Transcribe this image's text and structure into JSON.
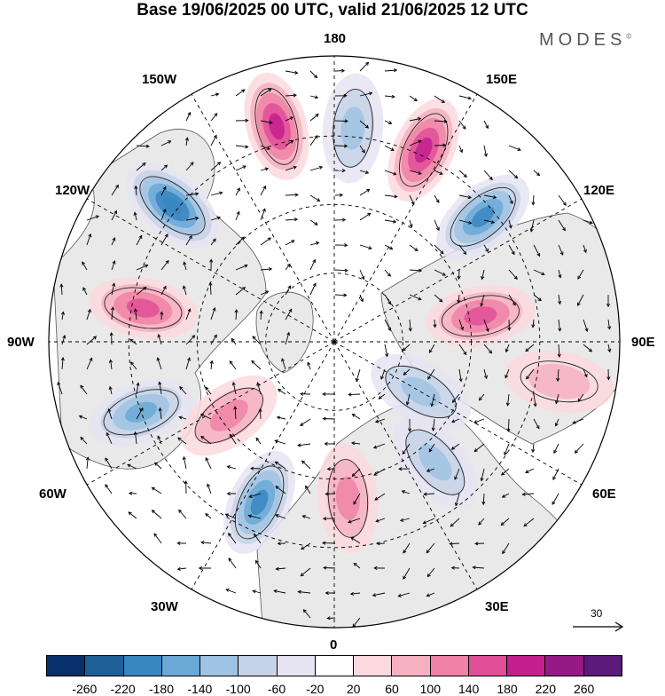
{
  "title": "Base 19/06/2025 00 UTC, valid 21/06/2025 12 UTC",
  "brand": "MODES",
  "brand_mark": "©",
  "longitude_labels": {
    "top": "180",
    "bottom": "0",
    "left": "90W",
    "right": "90E",
    "upper_left_1": "150W",
    "upper_left_2": "120W",
    "upper_right_1": "150E",
    "upper_right_2": "120E",
    "lower_left_1": "60W",
    "lower_left_2": "30W",
    "lower_right_1": "60E",
    "lower_right_2": "30E"
  },
  "reference_vector": {
    "value": "30"
  },
  "colorbar": {
    "colors": [
      "#08306b",
      "#1f5f98",
      "#3a86c0",
      "#6aa9d6",
      "#9fc3e3",
      "#c7d3e8",
      "#e6e4f2",
      "#ffffff",
      "#fbd9de",
      "#f6b1c1",
      "#ef82a6",
      "#e04f98",
      "#c41f8e",
      "#951a86",
      "#5c1a7a"
    ],
    "ticks": [
      "-260",
      "-220",
      "-180",
      "-140",
      "-100",
      "-60",
      "-20",
      "20",
      "60",
      "100",
      "140",
      "180",
      "220",
      "260"
    ]
  },
  "anomalies": [
    {
      "lon": -165,
      "r": 0.78,
      "sign": 1,
      "level": 4
    },
    {
      "lon": 175,
      "r": 0.75,
      "sign": -1,
      "level": 2
    },
    {
      "lon": 155,
      "r": 0.74,
      "sign": 1,
      "level": 4
    },
    {
      "lon": 130,
      "r": 0.68,
      "sign": -1,
      "level": 4
    },
    {
      "lon": -130,
      "r": 0.74,
      "sign": -1,
      "level": 5
    },
    {
      "lon": -100,
      "r": 0.68,
      "sign": 1,
      "level": 3
    },
    {
      "lon": -70,
      "r": 0.72,
      "sign": -1,
      "level": 3
    },
    {
      "lon": -55,
      "r": 0.45,
      "sign": 1,
      "level": 2
    },
    {
      "lon": -25,
      "r": 0.62,
      "sign": -1,
      "level": 4
    },
    {
      "lon": 5,
      "r": 0.55,
      "sign": 1,
      "level": 2
    },
    {
      "lon": 40,
      "r": 0.55,
      "sign": -1,
      "level": 2
    },
    {
      "lon": 60,
      "r": 0.35,
      "sign": -1,
      "level": 2
    },
    {
      "lon": 100,
      "r": 0.52,
      "sign": 1,
      "level": 3
    },
    {
      "lon": 80,
      "r": 0.8,
      "sign": 1,
      "level": 1
    }
  ]
}
